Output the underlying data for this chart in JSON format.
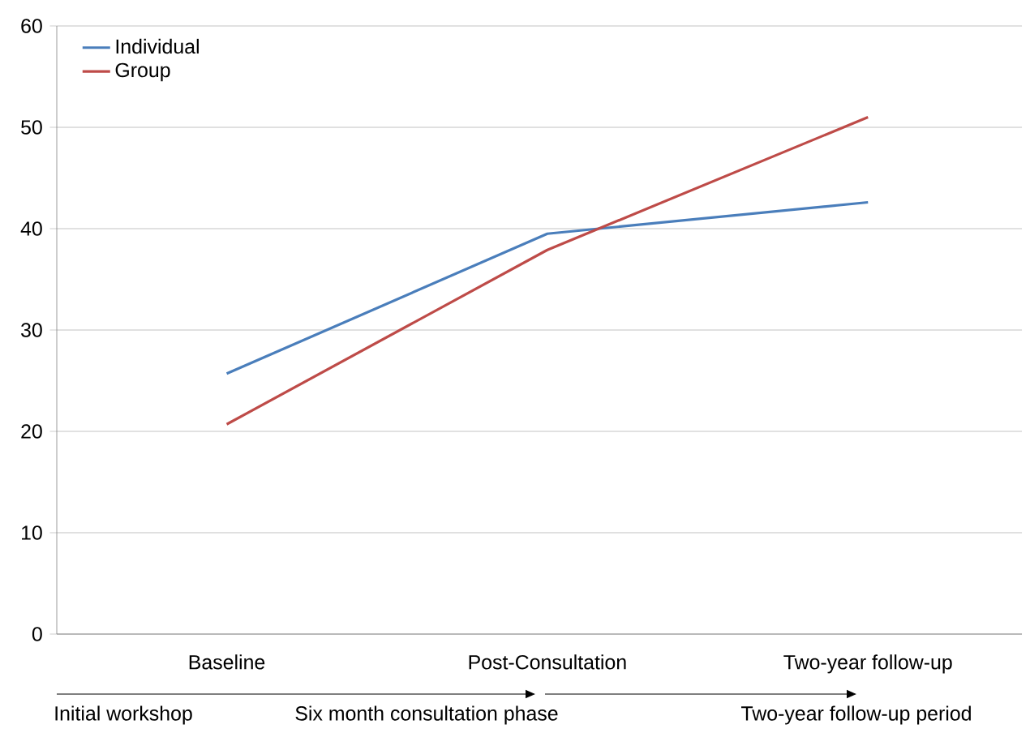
{
  "chart_data": {
    "type": "line",
    "categories": [
      "Baseline",
      "Post-Consultation",
      "Two-year follow-up"
    ],
    "series": [
      {
        "name": "Individual",
        "color": "#4a7ebb",
        "values": [
          25.7,
          39.5,
          42.6
        ]
      },
      {
        "name": "Group",
        "color": "#be4b48",
        "values": [
          20.7,
          37.9,
          51.0
        ]
      }
    ],
    "ylim": [
      0,
      60
    ],
    "yticks": [
      0,
      10,
      20,
      30,
      40,
      50,
      60
    ],
    "grid": "y",
    "legend": "top left",
    "marker": "none",
    "line_style": "solid",
    "annotations": [
      "Initial workshop",
      "Six month consultation phase",
      "Two-year follow-up period"
    ]
  }
}
